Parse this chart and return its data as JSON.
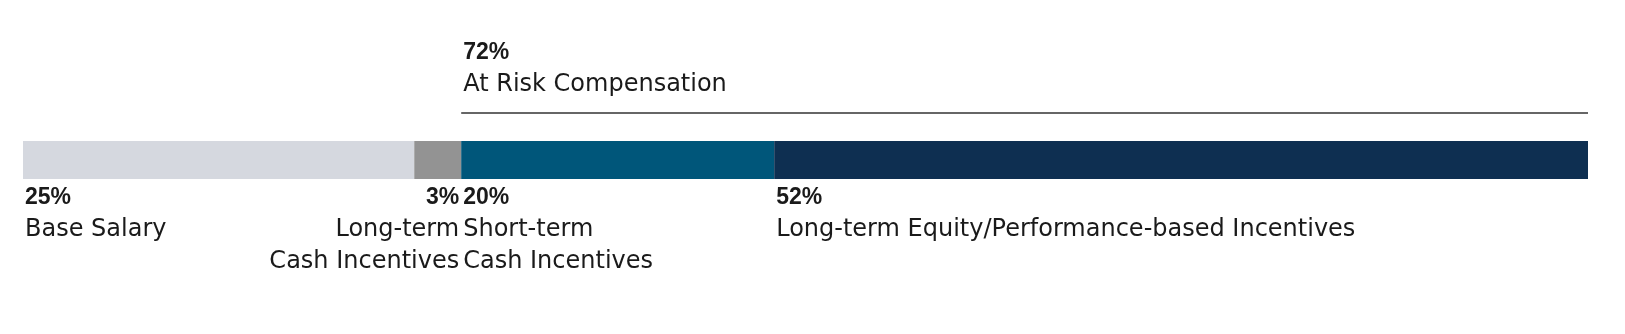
{
  "chart_data": {
    "type": "bar",
    "orientation": "horizontal",
    "stacked": true,
    "categories": [
      null
    ],
    "xlim": [
      0,
      100
    ],
    "legend": false,
    "series": [
      {
        "name": "Base Salary",
        "color": "#d5d8df",
        "values": [
          25
        ],
        "value_labels": [
          "25%"
        ]
      },
      {
        "name": "Long-term\nCash Incentives",
        "color": "#939393",
        "values": [
          3
        ],
        "value_labels": [
          "3%"
        ]
      },
      {
        "name": "Short-term\nCash Incentives",
        "color": "#00567a",
        "values": [
          20
        ],
        "value_labels": [
          "20%"
        ]
      },
      {
        "name": "Long-term Equity/Performance-based Incentives",
        "color": "#0e2f51",
        "values": [
          52
        ],
        "value_labels": [
          "52%"
        ]
      }
    ],
    "annotations": [
      "72%\nAt Risk Compensation"
    ]
  }
}
